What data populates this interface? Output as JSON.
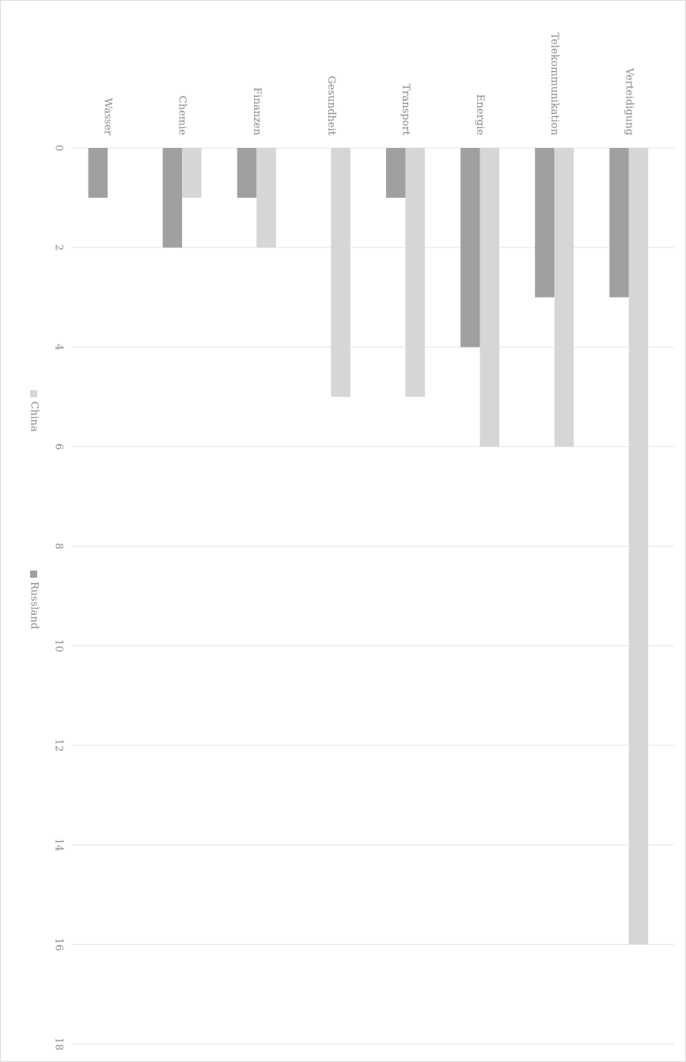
{
  "chart_data": {
    "type": "bar",
    "orientation": "rotated-90-clockwise",
    "categories": [
      "Wasser",
      "Chemie",
      "Finanzen",
      "Gesundheit",
      "Transport",
      "Energie",
      "Telekommunikation",
      "Verteidigung"
    ],
    "series": [
      {
        "name": "Russland",
        "color": "#a0a0a0",
        "values": [
          1,
          2,
          1,
          0,
          1,
          4,
          3,
          3
        ]
      },
      {
        "name": "China",
        "color": "#d6d6d6",
        "values": [
          0,
          1,
          2,
          5,
          5,
          6,
          6,
          16
        ]
      }
    ],
    "ylim": [
      0,
      18
    ],
    "yticks": [
      "0",
      "2",
      "4",
      "6",
      "8",
      "10",
      "12",
      "14",
      "16",
      "18"
    ],
    "grid": true,
    "legend": "left"
  }
}
